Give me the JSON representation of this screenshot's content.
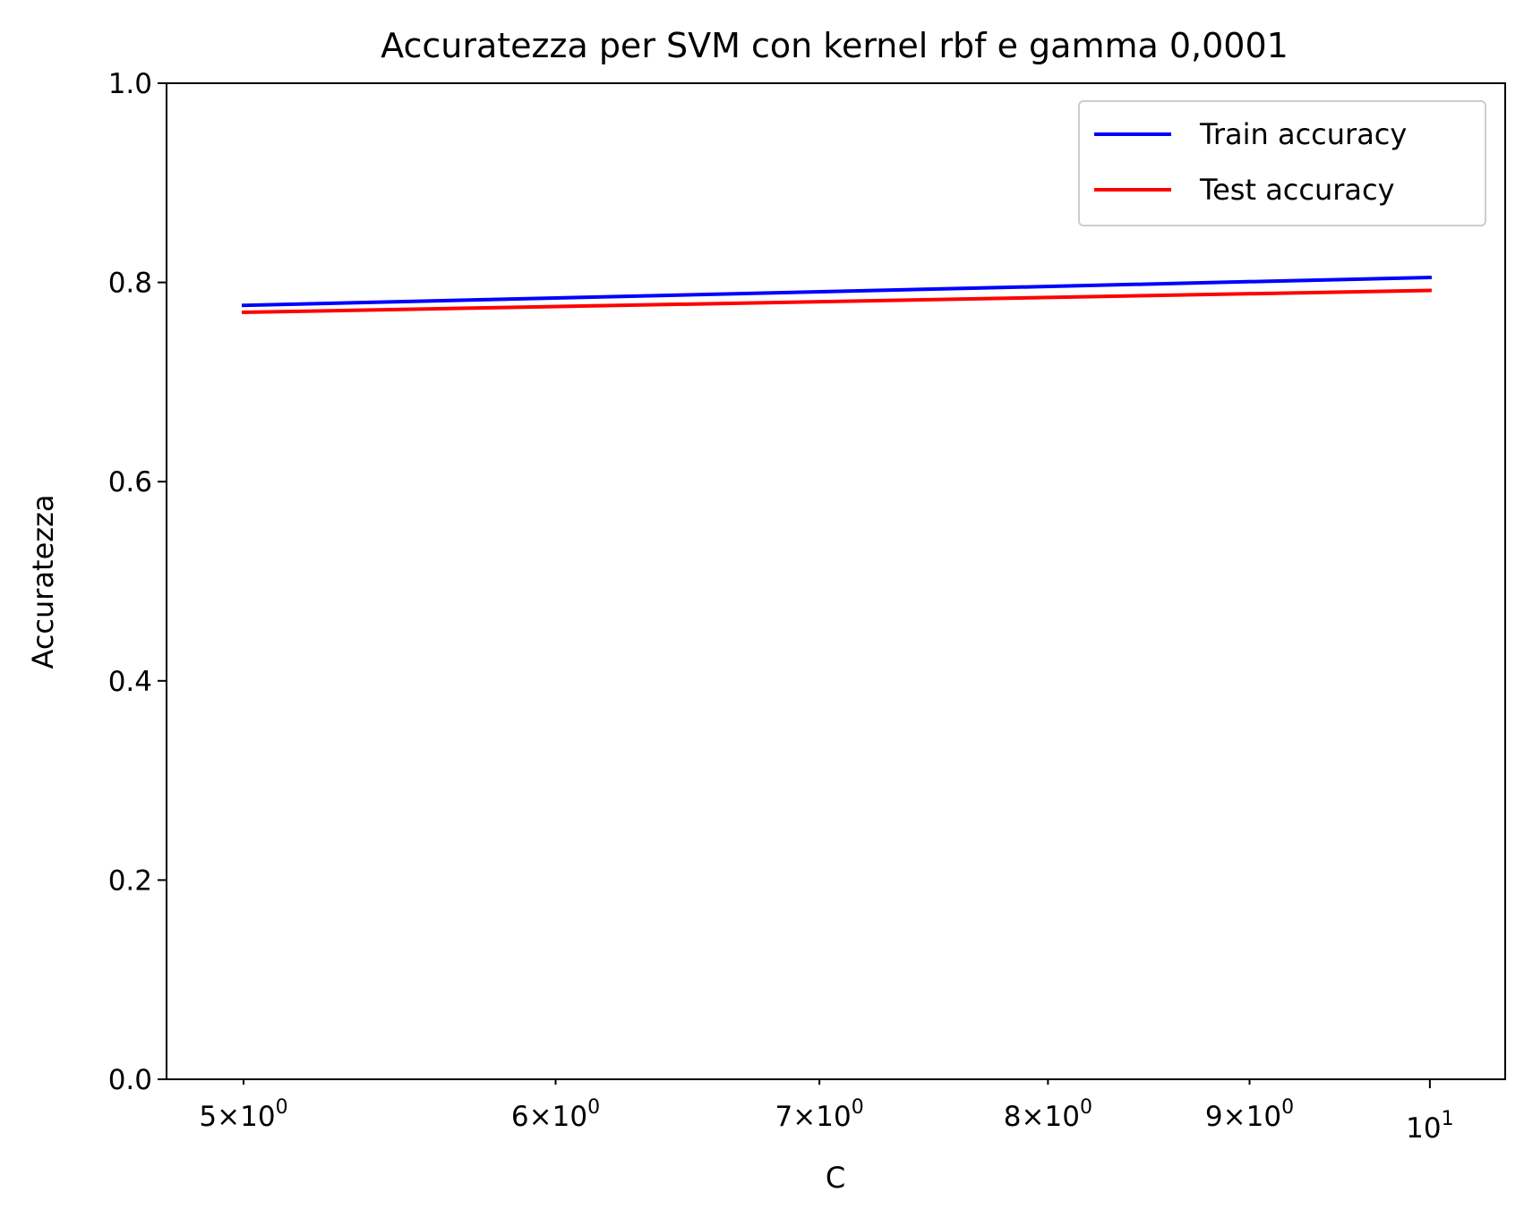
{
  "chart_data": {
    "type": "line",
    "title": "Accuratezza per SVM con kernel rbf e gamma 0,0001",
    "xlabel": "C",
    "ylabel": "Accuratezza",
    "xscale": "log",
    "xlim": [
      4.78,
      10.45
    ],
    "ylim": [
      0.0,
      1.0
    ],
    "grid": false,
    "legend_position": "top-right",
    "x": [
      5,
      10
    ],
    "series": [
      {
        "name": "Train accuracy",
        "color": "#0000ff",
        "values": [
          0.777,
          0.805
        ]
      },
      {
        "name": "Test accuracy",
        "color": "#ff0000",
        "values": [
          0.77,
          0.792
        ]
      }
    ],
    "y_ticks": [
      {
        "value": 0.0,
        "label": "0.0"
      },
      {
        "value": 0.2,
        "label": "0.2"
      },
      {
        "value": 0.4,
        "label": "0.4"
      },
      {
        "value": 0.6,
        "label": "0.6"
      },
      {
        "value": 0.8,
        "label": "0.8"
      },
      {
        "value": 1.0,
        "label": "1.0"
      }
    ],
    "x_ticks": [
      {
        "value": 5,
        "mantissa": "5",
        "base": "10",
        "exp": "0"
      },
      {
        "value": 6,
        "mantissa": "6",
        "base": "10",
        "exp": "0"
      },
      {
        "value": 7,
        "mantissa": "7",
        "base": "10",
        "exp": "0"
      },
      {
        "value": 8,
        "mantissa": "8",
        "base": "10",
        "exp": "0"
      },
      {
        "value": 9,
        "mantissa": "9",
        "base": "10",
        "exp": "0"
      },
      {
        "value": 10,
        "mantissa": "",
        "base": "10",
        "exp": "1"
      }
    ]
  }
}
